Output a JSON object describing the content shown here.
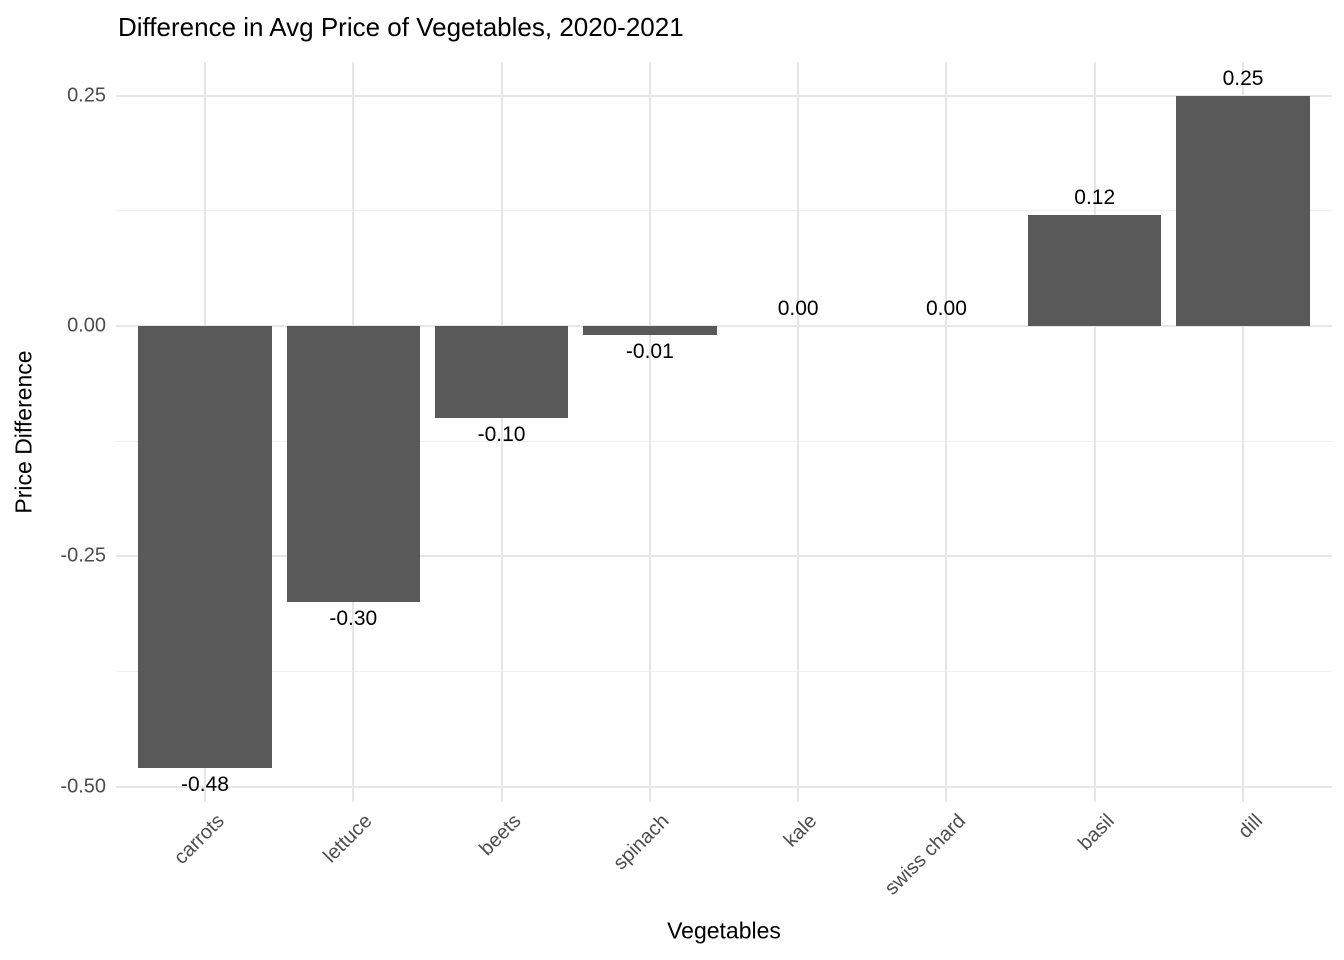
{
  "chart_data": {
    "type": "bar",
    "title": "Difference in Avg Price of Vegetables, 2020-2021",
    "xlabel": "Vegetables",
    "ylabel": "Price Difference",
    "categories": [
      "carrots",
      "lettuce",
      "beets",
      "spinach",
      "kale",
      "swiss chard",
      "basil",
      "dill"
    ],
    "values": [
      -0.48,
      -0.3,
      -0.1,
      -0.01,
      0.0,
      0.0,
      0.12,
      0.25
    ],
    "value_labels": [
      "-0.48",
      "-0.30",
      "-0.10",
      "-0.01",
      "0.00",
      "0.00",
      "0.12",
      "0.25"
    ],
    "y_ticks": [
      0.25,
      0.0,
      -0.25,
      -0.5
    ],
    "y_tick_labels": [
      "0.25",
      "0.00",
      "-0.25",
      "-0.50"
    ],
    "y_minor_ticks": [
      0.125,
      -0.125,
      -0.375
    ],
    "ylim": [
      -0.5165,
      0.2865
    ],
    "grid": true,
    "legend": "none",
    "bar_color": "#595959",
    "major_grid_color": "#e6e6e6",
    "minor_grid_color": "#f0f0f0",
    "tick_label_color": "#4d4d4d",
    "text_color": "#000000",
    "background_color": "#ffffff"
  }
}
